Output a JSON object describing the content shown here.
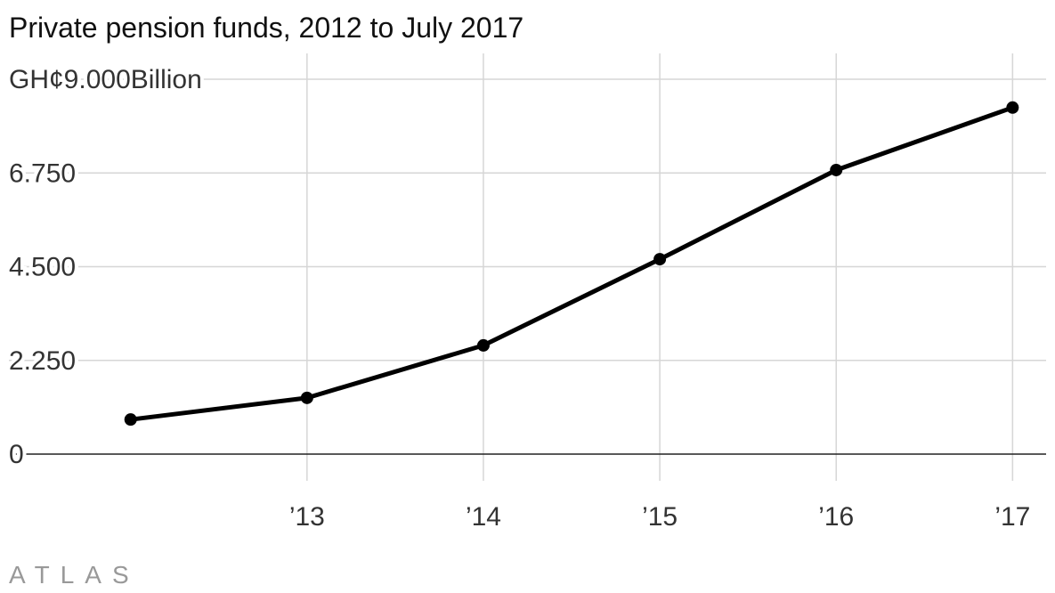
{
  "chart_data": {
    "type": "line",
    "title": "Private pension funds, 2012 to July 2017",
    "x": [
      2012,
      2013,
      2014,
      2015,
      2016,
      2017
    ],
    "series": [
      {
        "name": "Private pension funds",
        "color": "#000000",
        "values": [
          0.83,
          1.35,
          2.61,
          4.68,
          6.82,
          8.32
        ]
      }
    ],
    "xlim": [
      2011.31,
      2017.19
    ],
    "xticks": [
      {
        "value": 2013,
        "label": "’13"
      },
      {
        "value": 2014,
        "label": "’14"
      },
      {
        "value": 2015,
        "label": "’15"
      },
      {
        "value": 2016,
        "label": "’16"
      },
      {
        "value": 2017,
        "label": "’17"
      }
    ],
    "ylim": [
      0,
      9
    ],
    "yticks": [
      0,
      {
        "value": 2.25,
        "label": "2.250"
      },
      {
        "value": 4.5,
        "label": "4.500"
      },
      {
        "value": 6.75,
        "label": "6.750"
      },
      {
        "value": 9,
        "label": "GH¢9.000Billion"
      }
    ],
    "grid": true
  },
  "brand": "ATLAS"
}
